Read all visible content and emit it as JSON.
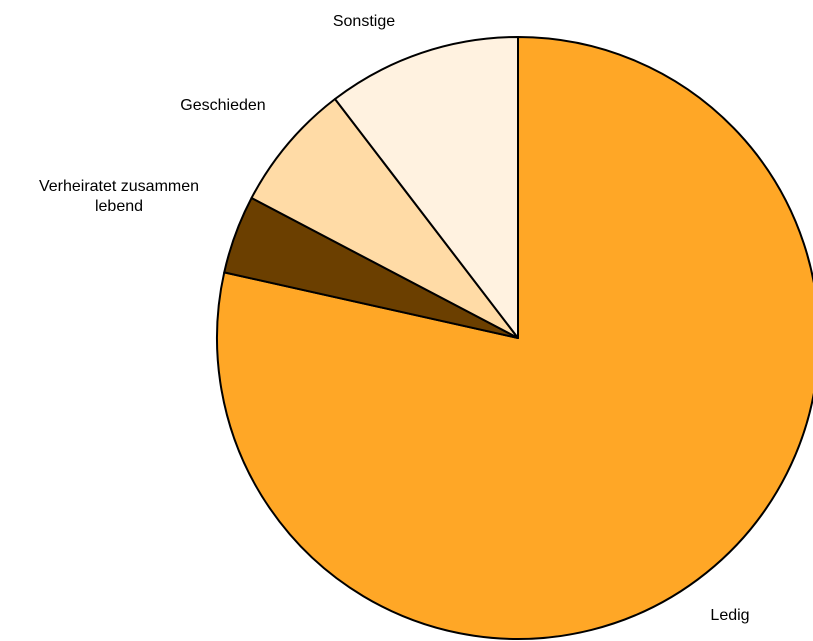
{
  "chart_data": {
    "type": "pie",
    "title": "",
    "start_angle_deg": 0,
    "direction": "clockwise",
    "legend": "none",
    "slices": [
      {
        "name": "Ledig",
        "value": 78.5,
        "color": "#FFA726"
      },
      {
        "name": "Verheiratet zusammen lebend",
        "value": 4.2,
        "color": "#6B3F00"
      },
      {
        "name": "Geschieden",
        "value": 6.9,
        "color": "#FFDBA6"
      },
      {
        "name": "Sonstige",
        "value": 10.4,
        "color": "#FFF2E0"
      }
    ],
    "labels": [
      {
        "lines": [
          "Ledig"
        ]
      },
      {
        "lines": [
          "Verheiratet zusammen",
          "lebend"
        ]
      },
      {
        "lines": [
          "Geschieden"
        ]
      },
      {
        "lines": [
          "Sonstige"
        ]
      }
    ]
  }
}
